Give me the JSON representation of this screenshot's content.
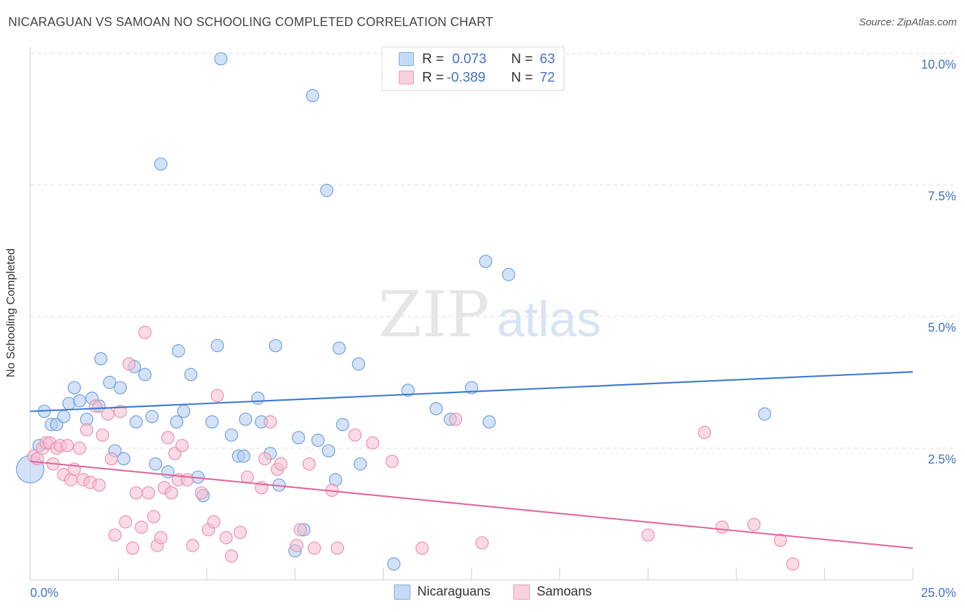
{
  "header": {
    "title": "NICARAGUAN VS SAMOAN NO SCHOOLING COMPLETED CORRELATION CHART",
    "source": "Source: ZipAtlas.com"
  },
  "watermark": {
    "zip": "ZIP",
    "atlas": "atlas"
  },
  "legend": {
    "rows": [
      {
        "r_label": "R =",
        "r_value": "0.073",
        "n_label": "N =",
        "n_value": "63",
        "color": "#aecbf1"
      },
      {
        "r_label": "R =",
        "r_value": "-0.389",
        "n_label": "N =",
        "n_value": "72",
        "color": "#f6bcd0"
      }
    ]
  },
  "bottom_legend": {
    "series1": "Nicaraguans",
    "series2": "Samoans"
  },
  "colors": {
    "blue_fill": "#aecbf1",
    "blue_stroke": "#6f9fdc",
    "blue_line": "#3d7bd0",
    "pink_fill": "#f6bcd0",
    "pink_stroke": "#e88fae",
    "pink_line": "#e0689a",
    "tick_label": "#4472c4",
    "grid": "#dddddd"
  },
  "chart_data": {
    "type": "scatter",
    "title": "NICARAGUAN VS SAMOAN NO SCHOOLING COMPLETED CORRELATION CHART",
    "xlabel": "",
    "ylabel": "No Schooling Completed",
    "xlim": [
      0,
      25
    ],
    "ylim": [
      0,
      10
    ],
    "x_tick_labels": [
      "0.0%",
      "25.0%"
    ],
    "y_ticks": [
      2.5,
      5.0,
      7.5,
      10.0
    ],
    "y_tick_labels": [
      "2.5%",
      "5.0%",
      "7.5%",
      "10.0%"
    ],
    "grid": true,
    "legend_position": "top-center",
    "series": [
      {
        "name": "Nicaraguans",
        "r": 0.073,
        "n": 63,
        "trend": {
          "x": [
            0,
            25
          ],
          "y": [
            3.2,
            3.95
          ]
        },
        "points": [
          [
            0.0,
            2.1
          ],
          [
            0.25,
            2.55
          ],
          [
            0.4,
            3.2
          ],
          [
            0.6,
            2.95
          ],
          [
            0.75,
            2.95
          ],
          [
            0.95,
            3.1
          ],
          [
            1.1,
            3.35
          ],
          [
            1.25,
            3.65
          ],
          [
            1.4,
            3.4
          ],
          [
            1.6,
            3.05
          ],
          [
            1.75,
            3.45
          ],
          [
            1.95,
            3.3
          ],
          [
            2.0,
            4.2
          ],
          [
            2.25,
            3.75
          ],
          [
            2.4,
            2.45
          ],
          [
            2.55,
            3.65
          ],
          [
            2.65,
            2.3
          ],
          [
            2.95,
            4.05
          ],
          [
            3.0,
            3.0
          ],
          [
            3.25,
            3.9
          ],
          [
            3.45,
            3.1
          ],
          [
            3.55,
            2.2
          ],
          [
            3.7,
            7.9
          ],
          [
            3.9,
            2.05
          ],
          [
            4.15,
            3.0
          ],
          [
            4.2,
            4.35
          ],
          [
            4.35,
            3.2
          ],
          [
            4.55,
            3.9
          ],
          [
            4.75,
            1.95
          ],
          [
            4.9,
            1.6
          ],
          [
            5.15,
            3.0
          ],
          [
            5.3,
            4.45
          ],
          [
            5.4,
            9.9
          ],
          [
            5.7,
            2.75
          ],
          [
            5.9,
            2.35
          ],
          [
            6.05,
            2.35
          ],
          [
            6.1,
            3.05
          ],
          [
            6.45,
            3.45
          ],
          [
            6.55,
            3.0
          ],
          [
            6.8,
            2.4
          ],
          [
            6.95,
            4.45
          ],
          [
            7.05,
            1.8
          ],
          [
            7.5,
            0.55
          ],
          [
            7.6,
            2.7
          ],
          [
            7.75,
            0.95
          ],
          [
            8.0,
            9.2
          ],
          [
            8.15,
            2.65
          ],
          [
            8.4,
            7.4
          ],
          [
            8.45,
            2.45
          ],
          [
            8.65,
            1.9
          ],
          [
            8.75,
            4.4
          ],
          [
            8.85,
            2.95
          ],
          [
            9.3,
            4.1
          ],
          [
            9.35,
            2.2
          ],
          [
            10.3,
            0.3
          ],
          [
            10.7,
            3.6
          ],
          [
            11.5,
            3.25
          ],
          [
            11.9,
            3.05
          ],
          [
            12.5,
            3.65
          ],
          [
            12.9,
            6.05
          ],
          [
            13.0,
            3.0
          ],
          [
            13.55,
            5.8
          ],
          [
            20.8,
            3.15
          ]
        ]
      },
      {
        "name": "Samoans",
        "r": -0.389,
        "n": 72,
        "trend": {
          "x": [
            0,
            25
          ],
          "y": [
            2.25,
            0.6
          ]
        },
        "points": [
          [
            0.1,
            2.35
          ],
          [
            0.2,
            2.3
          ],
          [
            0.35,
            2.5
          ],
          [
            0.45,
            2.6
          ],
          [
            0.55,
            2.6
          ],
          [
            0.65,
            2.2
          ],
          [
            0.75,
            2.5
          ],
          [
            0.85,
            2.55
          ],
          [
            0.95,
            2.0
          ],
          [
            1.05,
            2.55
          ],
          [
            1.15,
            1.9
          ],
          [
            1.25,
            2.1
          ],
          [
            1.4,
            2.5
          ],
          [
            1.5,
            1.9
          ],
          [
            1.6,
            2.85
          ],
          [
            1.7,
            1.85
          ],
          [
            1.85,
            3.3
          ],
          [
            1.95,
            1.8
          ],
          [
            2.05,
            2.75
          ],
          [
            2.2,
            3.15
          ],
          [
            2.3,
            2.3
          ],
          [
            2.4,
            0.85
          ],
          [
            2.55,
            3.2
          ],
          [
            2.7,
            1.1
          ],
          [
            2.8,
            4.1
          ],
          [
            2.9,
            0.6
          ],
          [
            3.0,
            1.65
          ],
          [
            3.15,
            1.0
          ],
          [
            3.25,
            4.7
          ],
          [
            3.35,
            1.65
          ],
          [
            3.5,
            1.2
          ],
          [
            3.6,
            0.65
          ],
          [
            3.7,
            0.8
          ],
          [
            3.8,
            1.75
          ],
          [
            3.9,
            2.7
          ],
          [
            4.0,
            1.65
          ],
          [
            4.1,
            2.4
          ],
          [
            4.2,
            1.9
          ],
          [
            4.3,
            2.55
          ],
          [
            4.45,
            1.9
          ],
          [
            4.6,
            0.65
          ],
          [
            4.85,
            1.65
          ],
          [
            5.05,
            0.95
          ],
          [
            5.2,
            1.1
          ],
          [
            5.3,
            3.5
          ],
          [
            5.55,
            0.8
          ],
          [
            5.7,
            0.45
          ],
          [
            5.95,
            0.9
          ],
          [
            6.15,
            1.95
          ],
          [
            6.55,
            1.75
          ],
          [
            6.65,
            2.3
          ],
          [
            6.8,
            3.0
          ],
          [
            7.0,
            2.1
          ],
          [
            7.1,
            2.2
          ],
          [
            7.55,
            0.65
          ],
          [
            7.65,
            0.95
          ],
          [
            7.9,
            2.2
          ],
          [
            8.05,
            0.6
          ],
          [
            8.55,
            1.7
          ],
          [
            8.7,
            0.6
          ],
          [
            9.2,
            2.75
          ],
          [
            9.7,
            2.6
          ],
          [
            10.25,
            2.25
          ],
          [
            11.1,
            0.6
          ],
          [
            12.05,
            3.05
          ],
          [
            12.8,
            0.7
          ],
          [
            17.5,
            0.85
          ],
          [
            19.1,
            2.8
          ],
          [
            19.6,
            1.0
          ],
          [
            20.5,
            1.05
          ],
          [
            21.25,
            0.75
          ],
          [
            21.6,
            0.3
          ]
        ]
      }
    ]
  }
}
